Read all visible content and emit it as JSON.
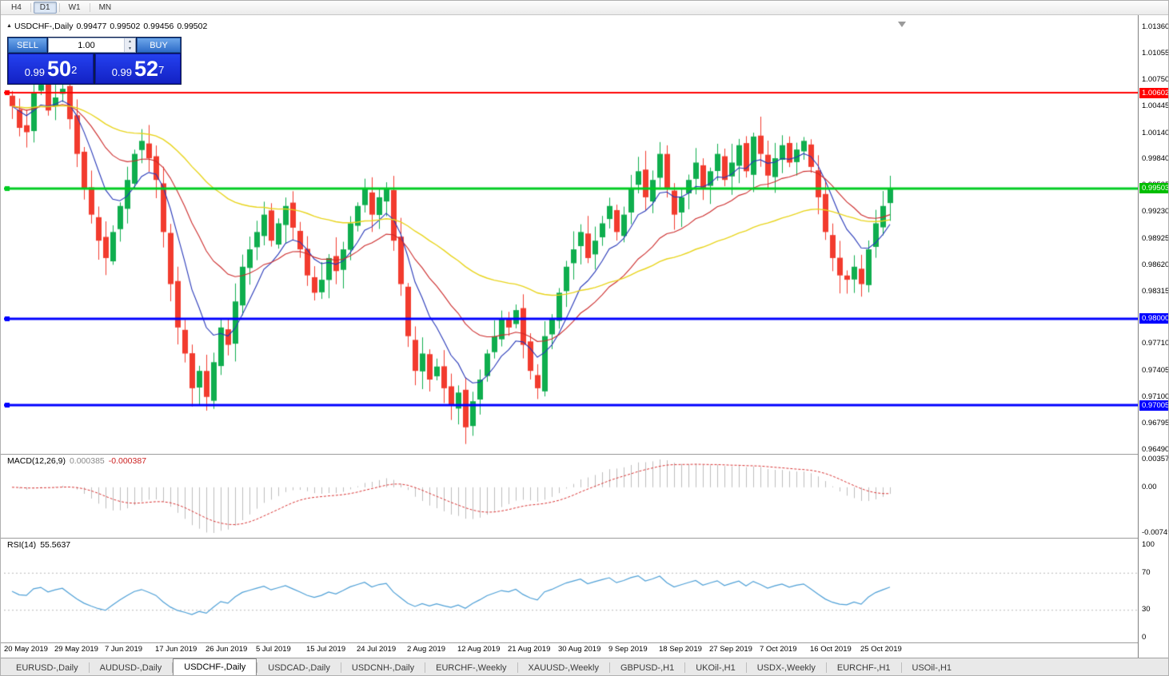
{
  "toolbar": {
    "timeframes": [
      "H4",
      "D1",
      "W1",
      "MN"
    ],
    "active": "D1"
  },
  "header": {
    "symbol": "USDCHF-,Daily",
    "open": "0.99477",
    "high": "0.99502",
    "low": "0.99456",
    "close": "0.99502"
  },
  "one_click": {
    "sell_label": "SELL",
    "buy_label": "BUY",
    "lot": "1.00",
    "bid": {
      "prefix": "0.99",
      "big": "50",
      "sup": "2"
    },
    "ask": {
      "prefix": "0.99",
      "big": "52",
      "sup": "7"
    }
  },
  "price_axis": {
    "ticks": [
      "1.01360",
      "1.01055",
      "1.00750",
      "1.00445",
      "1.00140",
      "0.99840",
      "0.99535",
      "0.99230",
      "0.98925",
      "0.98620",
      "0.98315",
      "0.97710",
      "0.97405",
      "0.97100",
      "0.96795",
      "0.96490"
    ],
    "badges": [
      {
        "text": "1.00602",
        "color": "#FF0000",
        "price": 1.00602
      },
      {
        "text": "0.99503",
        "color": "#00BE00",
        "price": 0.99503
      },
      {
        "text": "0.98000",
        "color": "#0000FF",
        "price": 0.98
      },
      {
        "text": "0.97005",
        "color": "#0000FF",
        "price": 0.97005
      }
    ]
  },
  "macd": {
    "name": "MACD(12,26,9)",
    "value_main": "0.000385",
    "value_signal": "-0.000387",
    "axis": {
      "max": "0.003574",
      "zero": "0.00",
      "min": "-0.00749"
    }
  },
  "rsi": {
    "name": "RSI(14)",
    "value": "55.5637",
    "axis": [
      "100",
      "70",
      "30",
      "0"
    ],
    "levels": [
      70,
      30
    ]
  },
  "date_axis": [
    "20 May 2019",
    "29 May 2019",
    "7 Jun 2019",
    "17 Jun 2019",
    "26 Jun 2019",
    "5 Jul 2019",
    "15 Jul 2019",
    "24 Jul 2019",
    "2 Aug 2019",
    "12 Aug 2019",
    "21 Aug 2019",
    "30 Aug 2019",
    "9 Sep 2019",
    "18 Sep 2019",
    "27 Sep 2019",
    "7 Oct 2019",
    "16 Oct 2019",
    "25 Oct 2019"
  ],
  "tabs": [
    "EURUSD-,Daily",
    "AUDUSD-,Daily",
    "USDCHF-,Daily",
    "USDCAD-,Daily",
    "USDCNH-,Daily",
    "EURCHF-,Weekly",
    "XAUUSD-,Weekly",
    "GBPUSD-,H1",
    "UKOil-,H1",
    "USDX-,Weekly",
    "EURCHF-,H1",
    "USOil-,H1"
  ],
  "active_tab": "USDCHF-,Daily",
  "chart_data": {
    "type": "candlestick",
    "symbol": "USDCHF-",
    "timeframe": "Daily",
    "x_range": [
      "20 May 2019",
      "31 Oct 2019"
    ],
    "y_range": [
      0.9649,
      1.0136
    ],
    "candles": {
      "note": "daily closes, one value per bar; OHLC derived for rendering",
      "closes": [
        1.0045,
        1.002,
        1.0015,
        1.006,
        1.007,
        1.004,
        1.0055,
        1.0065,
        1.003,
        0.999,
        0.995,
        0.992,
        0.989,
        0.987,
        0.99,
        0.993,
        0.996,
        0.999,
        1.0005,
        0.9985,
        0.996,
        0.99,
        0.984,
        0.979,
        0.976,
        0.972,
        0.974,
        0.971,
        0.975,
        0.979,
        0.977,
        0.982,
        0.986,
        0.988,
        0.99,
        0.992,
        0.989,
        0.991,
        0.993,
        0.9905,
        0.988,
        0.985,
        0.983,
        0.9845,
        0.987,
        0.9855,
        0.988,
        0.991,
        0.993,
        0.995,
        0.992,
        0.994,
        0.995,
        0.989,
        0.984,
        0.978,
        0.974,
        0.976,
        0.973,
        0.9745,
        0.972,
        0.97,
        0.9715,
        0.9675,
        0.9705,
        0.973,
        0.976,
        0.978,
        0.98,
        0.979,
        0.981,
        0.977,
        0.974,
        0.972,
        0.978,
        0.98,
        0.983,
        0.986,
        0.988,
        0.99,
        0.987,
        0.989,
        0.991,
        0.993,
        0.99,
        0.992,
        0.995,
        0.997,
        0.994,
        0.996,
        0.999,
        0.995,
        0.992,
        0.994,
        0.996,
        0.998,
        0.995,
        0.997,
        0.999,
        0.996,
        0.998,
        1.0,
        0.997,
        1.001,
        0.999,
        0.9965,
        0.9985,
        1.0,
        0.998,
        0.9995,
        1.0005,
        0.9975,
        0.994,
        0.99,
        0.987,
        0.985,
        0.9845,
        0.986,
        0.984,
        0.988,
        0.991,
        0.993,
        0.995
      ]
    },
    "hlines": [
      {
        "price": 1.00602,
        "color": "#FF0000",
        "width": 2
      },
      {
        "price": 0.99503,
        "color": "#00CC22",
        "width": 3
      },
      {
        "price": 0.98,
        "color": "#0000FF",
        "width": 3
      },
      {
        "price": 0.97005,
        "color": "#0000FF",
        "width": 3
      }
    ],
    "moving_averages": [
      {
        "period": 8,
        "color": "#2637b8"
      },
      {
        "period": 21,
        "color": "#cc2a2a"
      },
      {
        "period": 55,
        "color": "#e8d41c"
      }
    ],
    "colors": {
      "up": "#0fae4e",
      "down": "#f23b2e",
      "macd_hist": "#bcbcbc",
      "macd_signal": "#d83434",
      "rsi_line": "#4d9fd6"
    },
    "indicators": [
      {
        "name": "MACD",
        "params": [
          12,
          26,
          9
        ],
        "last_main": 0.000385,
        "last_signal": -0.000387
      },
      {
        "name": "RSI",
        "params": [
          14
        ],
        "last": 55.5637
      }
    ]
  }
}
